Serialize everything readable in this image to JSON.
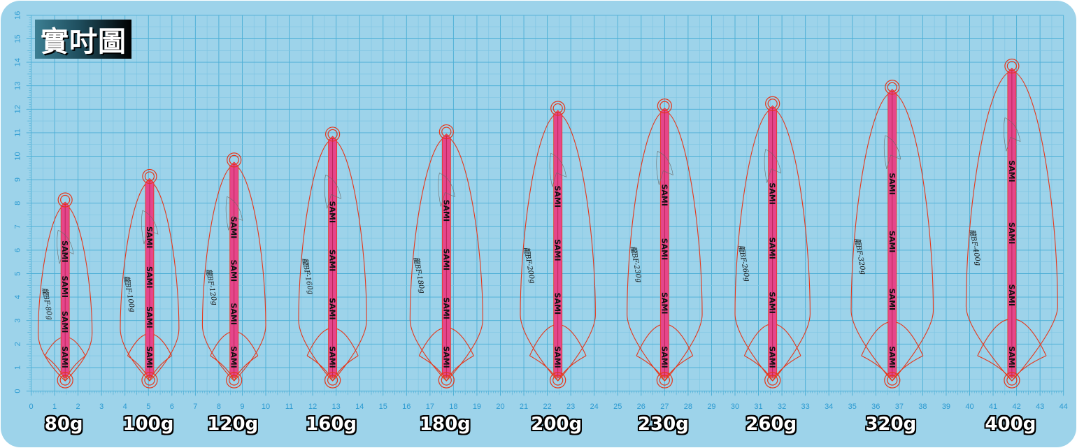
{
  "title": "實吋圖",
  "colors": {
    "background": "#9dd3ea",
    "grid_major": "#4aaed5",
    "grid_minor": "#7cc3e2",
    "axis_text": "#2b9ad1",
    "bar": "#e5468b",
    "outline": "#e6361a",
    "logo": "#111111"
  },
  "x_axis": {
    "min": 0,
    "max": 44,
    "labels": [
      "0",
      "1",
      "2",
      "3",
      "4",
      "5",
      "6",
      "7",
      "8",
      "9",
      "10",
      "11",
      "12",
      "13",
      "14",
      "15",
      "16",
      "17",
      "18",
      "19",
      "20",
      "21",
      "22",
      "23",
      "24",
      "25",
      "26",
      "27",
      "28",
      "29",
      "30",
      "31",
      "32",
      "33",
      "34",
      "35",
      "36",
      "37",
      "38",
      "39",
      "40",
      "41",
      "42",
      "43",
      "44"
    ]
  },
  "y_axis": {
    "min": 0,
    "max": 16,
    "labels": [
      "0",
      "1",
      "2",
      "3",
      "4",
      "5",
      "6",
      "7",
      "8",
      "9",
      "10",
      "11",
      "12",
      "13",
      "14",
      "15",
      "16"
    ]
  },
  "logo_text": "SAMI",
  "jigs": [
    {
      "weight": "80g",
      "model": "龍BF-80g",
      "center_x": 1.45,
      "length": 7.5,
      "half_width": 1.15,
      "logo_count": 4
    },
    {
      "weight": "100g",
      "model": "龍BF-100g",
      "center_x": 5.05,
      "length": 8.5,
      "half_width": 1.25,
      "logo_count": 4
    },
    {
      "weight": "120g",
      "model": "龍BF-120g",
      "center_x": 8.65,
      "length": 9.2,
      "half_width": 1.35,
      "logo_count": 4
    },
    {
      "weight": "160g",
      "model": "龍BF-160g",
      "center_x": 12.85,
      "length": 10.3,
      "half_width": 1.45,
      "logo_count": 4
    },
    {
      "weight": "180g",
      "model": "龍BF-180g",
      "center_x": 17.7,
      "length": 10.4,
      "half_width": 1.55,
      "logo_count": 4
    },
    {
      "weight": "200g",
      "model": "龍BF-200g",
      "center_x": 22.45,
      "length": 11.4,
      "half_width": 1.6,
      "logo_count": 4
    },
    {
      "weight": "230g",
      "model": "龍BF-230g",
      "center_x": 27.0,
      "length": 11.5,
      "half_width": 1.6,
      "logo_count": 4
    },
    {
      "weight": "260g",
      "model": "龍BF-260g",
      "center_x": 31.6,
      "length": 11.6,
      "half_width": 1.6,
      "logo_count": 4
    },
    {
      "weight": "320g",
      "model": "龍BF-320g",
      "center_x": 36.7,
      "length": 12.3,
      "half_width": 1.75,
      "logo_count": 4
    },
    {
      "weight": "400g",
      "model": "龍BF-400g",
      "center_x": 41.8,
      "length": 13.2,
      "half_width": 1.95,
      "logo_count": 4
    }
  ]
}
